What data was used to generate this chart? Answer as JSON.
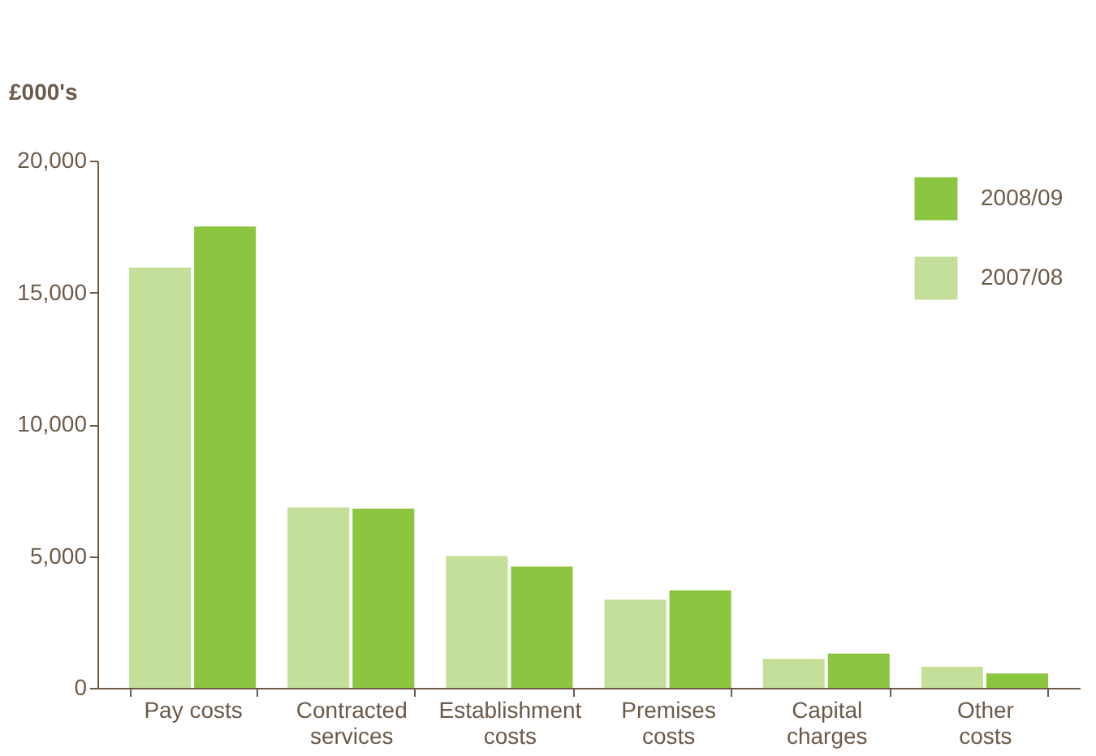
{
  "chart_data": {
    "type": "bar",
    "ylabel": "£000's",
    "categories": [
      "Pay costs",
      "Contracted services",
      "Establishment costs",
      "Premises costs",
      "Capital charges",
      "Other costs"
    ],
    "series": [
      {
        "name": "2007/08",
        "color": "#c3df9a",
        "values": [
          15950,
          6850,
          5000,
          3350,
          1100,
          800
        ]
      },
      {
        "name": "2008/09",
        "color": "#8cc540",
        "values": [
          17500,
          6800,
          4600,
          3700,
          1300,
          550
        ]
      }
    ],
    "ylim": [
      0,
      20000
    ],
    "yticks": [
      0,
      {
        "value": 5000,
        "label": "5,000"
      },
      {
        "value": 10000,
        "label": "10,000"
      },
      {
        "value": 15000,
        "label": "15,000"
      },
      {
        "value": 20000,
        "label": "20,000"
      }
    ],
    "grid": false,
    "legend": "top right"
  }
}
